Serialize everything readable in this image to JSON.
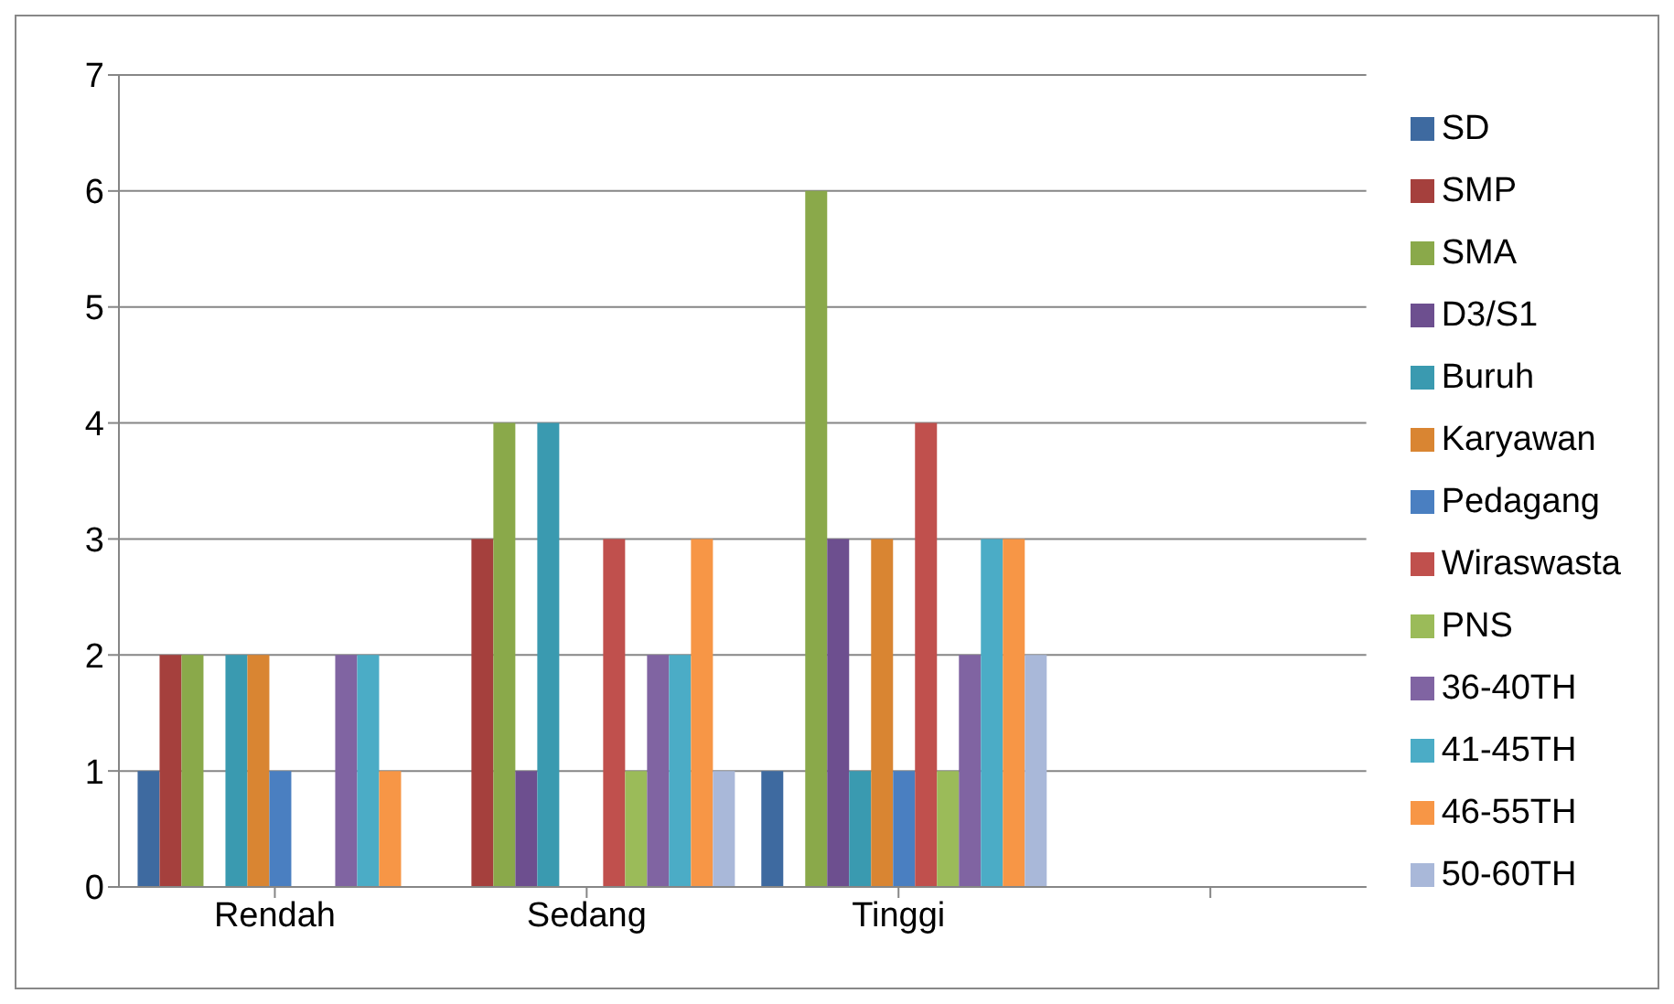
{
  "chart_data": {
    "type": "bar",
    "categories": [
      "Rendah",
      "Sedang",
      "Tinggi",
      null
    ],
    "series": [
      {
        "name": "SD",
        "color": "#3e6aa0",
        "values": [
          1,
          0,
          1,
          null
        ]
      },
      {
        "name": "SMP",
        "color": "#a5403d",
        "values": [
          2,
          3,
          0,
          null
        ]
      },
      {
        "name": "SMA",
        "color": "#8aa94a",
        "values": [
          2,
          4,
          6,
          null
        ]
      },
      {
        "name": "D3/S1",
        "color": "#6d4f8f",
        "values": [
          0,
          1,
          3,
          null
        ]
      },
      {
        "name": "Buruh",
        "color": "#3a9ab0",
        "values": [
          2,
          4,
          1,
          null
        ]
      },
      {
        "name": "Karyawan",
        "color": "#d98532",
        "values": [
          2,
          0,
          3,
          null
        ]
      },
      {
        "name": "Pedagang",
        "color": "#4a7fc1",
        "values": [
          1,
          0,
          1,
          null
        ]
      },
      {
        "name": "Wiraswasta",
        "color": "#c0504d",
        "values": [
          0,
          3,
          4,
          null
        ]
      },
      {
        "name": "PNS",
        "color": "#9bbb59",
        "values": [
          0,
          1,
          1,
          null
        ]
      },
      {
        "name": "36-40TH",
        "color": "#8064a2",
        "values": [
          2,
          2,
          2,
          null
        ]
      },
      {
        "name": "41-45TH",
        "color": "#4bacc6",
        "values": [
          2,
          2,
          3,
          null
        ]
      },
      {
        "name": "46-55TH",
        "color": "#f79646",
        "values": [
          1,
          3,
          3,
          null
        ]
      },
      {
        "name": "50-60TH",
        "color": "#a9b8d9",
        "values": [
          0,
          1,
          2,
          null
        ]
      }
    ],
    "ylim": [
      0,
      7
    ],
    "yticks": [
      0,
      1,
      2,
      3,
      4,
      5,
      6,
      7
    ],
    "grid": "y",
    "legend": "right"
  }
}
